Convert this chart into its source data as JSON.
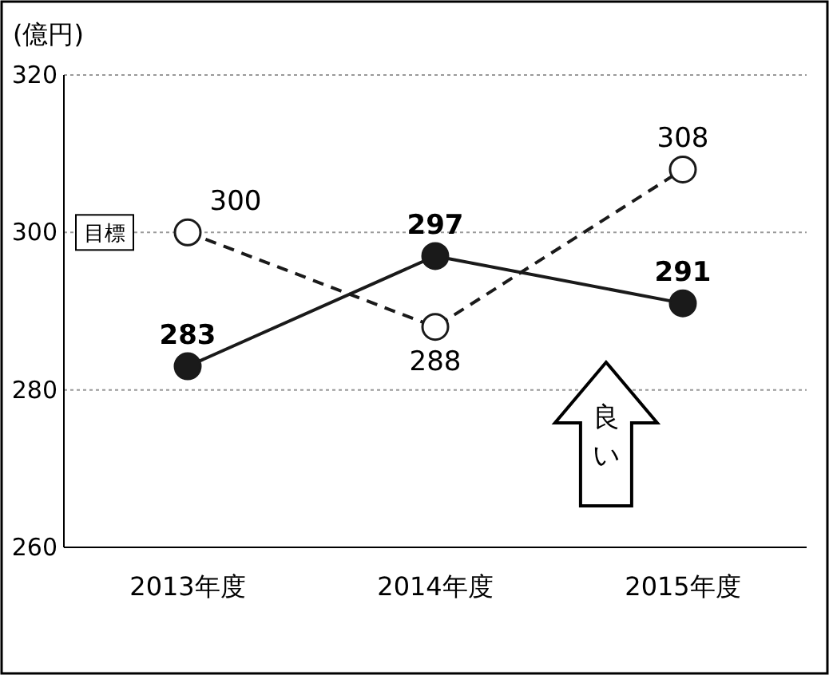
{
  "chart_data": {
    "type": "line",
    "ylabel": "(億円)",
    "categories": [
      "2013年度",
      "2014年度",
      "2015年度"
    ],
    "series": [
      {
        "color": "#1a1a1a",
        "values": [
          283,
          297,
          291
        ],
        "line_style": "solid"
      },
      {
        "name": "目標",
        "color": "#1a1a1a",
        "values": [
          300,
          288,
          308
        ],
        "line_style": "dashed"
      }
    ],
    "ylim": [
      260,
      320
    ],
    "yticks": [
      260,
      280,
      300,
      320
    ],
    "grid": "y",
    "marker": "circle",
    "data_labels": true,
    "legend": false,
    "annotations": [
      "良い"
    ]
  }
}
